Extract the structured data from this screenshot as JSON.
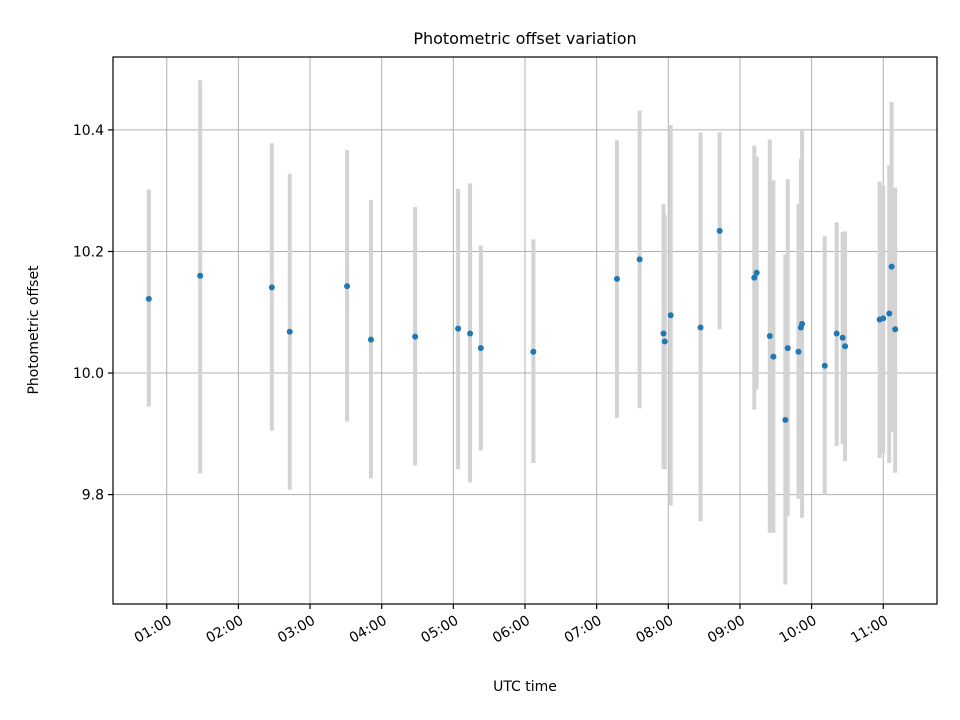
{
  "chart_data": {
    "type": "scatter",
    "title": "Photometric offset variation",
    "xlabel": "UTC time",
    "ylabel": "Photometric offset",
    "x_unit": "UTC time (HH:MM)",
    "xlim": [
      "00:15",
      "11:45"
    ],
    "ylim": [
      9.62,
      10.52
    ],
    "x_ticks": [
      "01:00",
      "02:00",
      "03:00",
      "04:00",
      "05:00",
      "06:00",
      "07:00",
      "08:00",
      "09:00",
      "10:00",
      "11:00"
    ],
    "y_ticks": [
      "9.8",
      "10.0",
      "10.2",
      "10.4"
    ],
    "y_tick_values": [
      9.8,
      10.0,
      10.2,
      10.4
    ],
    "grid": true,
    "colors": {
      "point": "#1f77b4",
      "errorbar": "#d3d3d3",
      "grid": "#b0b0b0"
    },
    "points": [
      {
        "t": "00:45",
        "y": 10.122,
        "lo": 9.945,
        "hi": 10.302
      },
      {
        "t": "01:28",
        "y": 10.16,
        "lo": 9.835,
        "hi": 10.482
      },
      {
        "t": "02:28",
        "y": 10.141,
        "lo": 9.905,
        "hi": 10.378
      },
      {
        "t": "02:43",
        "y": 10.068,
        "lo": 9.808,
        "hi": 10.328
      },
      {
        "t": "03:31",
        "y": 10.143,
        "lo": 9.92,
        "hi": 10.367
      },
      {
        "t": "03:51",
        "y": 10.055,
        "lo": 9.827,
        "hi": 10.285
      },
      {
        "t": "04:28",
        "y": 10.06,
        "lo": 9.848,
        "hi": 10.273
      },
      {
        "t": "05:04",
        "y": 10.073,
        "lo": 9.842,
        "hi": 10.303
      },
      {
        "t": "05:14",
        "y": 10.065,
        "lo": 9.82,
        "hi": 10.312
      },
      {
        "t": "05:23",
        "y": 10.041,
        "lo": 9.873,
        "hi": 10.21
      },
      {
        "t": "06:07",
        "y": 10.035,
        "lo": 9.852,
        "hi": 10.22
      },
      {
        "t": "07:17",
        "y": 10.155,
        "lo": 9.926,
        "hi": 10.383
      },
      {
        "t": "07:36",
        "y": 10.187,
        "lo": 9.942,
        "hi": 10.432
      },
      {
        "t": "07:56",
        "y": 10.065,
        "lo": 9.842,
        "hi": 10.278
      },
      {
        "t": "07:57",
        "y": 10.052,
        "lo": 9.842,
        "hi": 10.26
      },
      {
        "t": "08:02",
        "y": 10.095,
        "lo": 9.782,
        "hi": 10.408
      },
      {
        "t": "08:27",
        "y": 10.075,
        "lo": 9.756,
        "hi": 10.396
      },
      {
        "t": "08:43",
        "y": 10.234,
        "lo": 10.072,
        "hi": 10.396
      },
      {
        "t": "09:12",
        "y": 10.157,
        "lo": 9.94,
        "hi": 10.374
      },
      {
        "t": "09:14",
        "y": 10.165,
        "lo": 9.973,
        "hi": 10.356
      },
      {
        "t": "09:25",
        "y": 10.061,
        "lo": 9.737,
        "hi": 10.384
      },
      {
        "t": "09:28",
        "y": 10.027,
        "lo": 9.737,
        "hi": 10.317
      },
      {
        "t": "09:38",
        "y": 9.923,
        "lo": 9.652,
        "hi": 10.195
      },
      {
        "t": "09:40",
        "y": 10.041,
        "lo": 9.764,
        "hi": 10.319
      },
      {
        "t": "09:49",
        "y": 10.035,
        "lo": 9.793,
        "hi": 10.278
      },
      {
        "t": "09:51",
        "y": 10.075,
        "lo": 9.796,
        "hi": 10.353
      },
      {
        "t": "09:52",
        "y": 10.081,
        "lo": 9.762,
        "hi": 10.402
      },
      {
        "t": "10:11",
        "y": 10.012,
        "lo": 9.8,
        "hi": 10.225
      },
      {
        "t": "10:21",
        "y": 10.065,
        "lo": 9.88,
        "hi": 10.248
      },
      {
        "t": "10:26",
        "y": 10.058,
        "lo": 9.883,
        "hi": 10.232
      },
      {
        "t": "10:28",
        "y": 10.044,
        "lo": 9.855,
        "hi": 10.233
      },
      {
        "t": "10:57",
        "y": 10.088,
        "lo": 9.86,
        "hi": 10.315
      },
      {
        "t": "11:00",
        "y": 10.09,
        "lo": 9.868,
        "hi": 10.308
      },
      {
        "t": "11:05",
        "y": 10.098,
        "lo": 9.852,
        "hi": 10.342
      },
      {
        "t": "11:07",
        "y": 10.175,
        "lo": 9.903,
        "hi": 10.446
      },
      {
        "t": "11:10",
        "y": 10.072,
        "lo": 9.836,
        "hi": 10.305
      }
    ]
  }
}
